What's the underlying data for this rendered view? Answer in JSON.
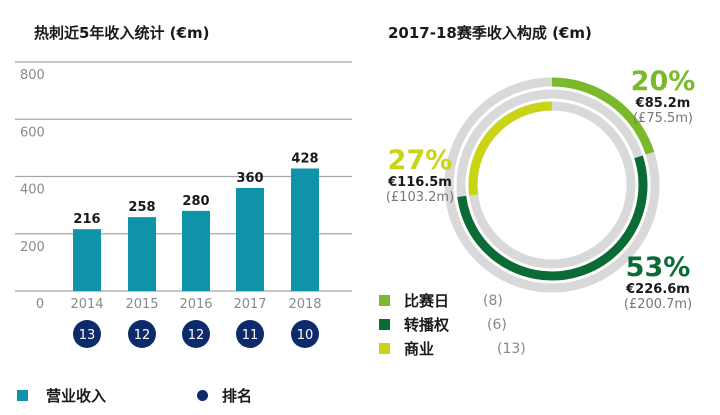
{
  "chart_data": [
    {
      "type": "bar",
      "title": "热刺近5年收入统计 (€m)",
      "xlabel": "",
      "ylabel": "",
      "categories": [
        "2014",
        "2015",
        "2016",
        "2017",
        "2018"
      ],
      "series": [
        {
          "name": "营业收入",
          "values": [
            216,
            258,
            280,
            360,
            428
          ],
          "color": "#0e93a8"
        }
      ],
      "rankings": {
        "name": "排名",
        "values": [
          "13",
          "12",
          "12",
          "11",
          "10"
        ],
        "color": "#0d2a6b"
      },
      "ylim": [
        0,
        800
      ],
      "yticks": [
        "0",
        "200",
        "400",
        "600",
        "800"
      ],
      "grid": true,
      "legend": [
        {
          "label": "营业收入",
          "marker": "square",
          "color": "#0e93a8"
        },
        {
          "label": "排名",
          "marker": "circle",
          "color": "#0d2a6b"
        }
      ],
      "legend_position": "bottom"
    },
    {
      "type": "pie",
      "title": "2017-18赛季收入构成 (€m)",
      "slices": [
        {
          "name": "比赛日",
          "percent": 20,
          "eur": "€85.2m",
          "gbp": "(£75.5m)",
          "rank": "(8)",
          "color": "#7ab929"
        },
        {
          "name": "转播权",
          "percent": 53,
          "eur": "€226.6m",
          "gbp": "(£200.7m)",
          "rank": "(6)",
          "color": "#0b6b35"
        },
        {
          "name": "商业",
          "percent": 27,
          "eur": "€116.5m",
          "gbp": "(£103.2m)",
          "rank": "(13)",
          "color": "#c8d414"
        }
      ],
      "track_color": "#d9d9d9",
      "legend_position": "bottom-left"
    }
  ]
}
